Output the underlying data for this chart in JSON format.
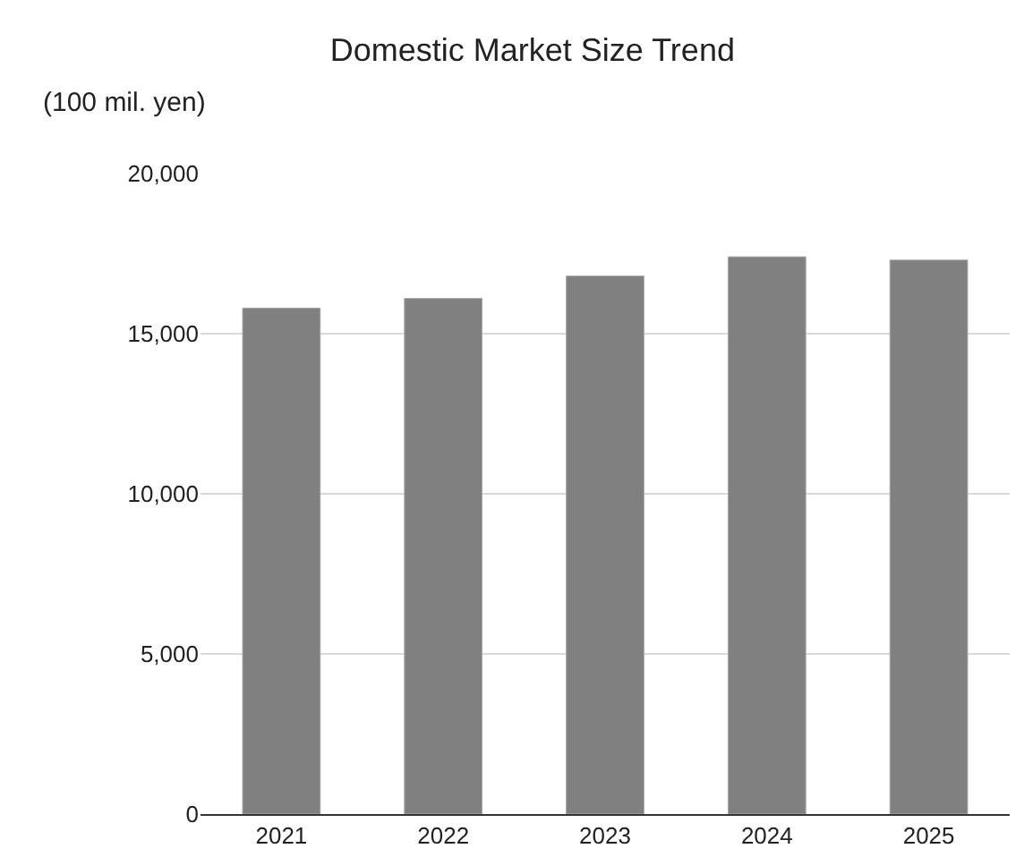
{
  "chart_data": {
    "type": "bar",
    "title": "Domestic Market Size Trend",
    "ylabel": "(100 mil. yen)",
    "categories": [
      "2021",
      "2022",
      "2023",
      "2024",
      "2025"
    ],
    "values": [
      15800,
      16100,
      16800,
      17400,
      17300
    ],
    "color": "#808080",
    "ylim": [
      0,
      20000
    ],
    "yticks": [
      {
        "value": 0,
        "label": "0"
      },
      {
        "value": 5000,
        "label": "5,000"
      },
      {
        "value": 10000,
        "label": "10,000"
      },
      {
        "value": 15000,
        "label": "15,000"
      },
      {
        "value": 20000,
        "label": "20,000"
      }
    ],
    "grid": "y"
  }
}
